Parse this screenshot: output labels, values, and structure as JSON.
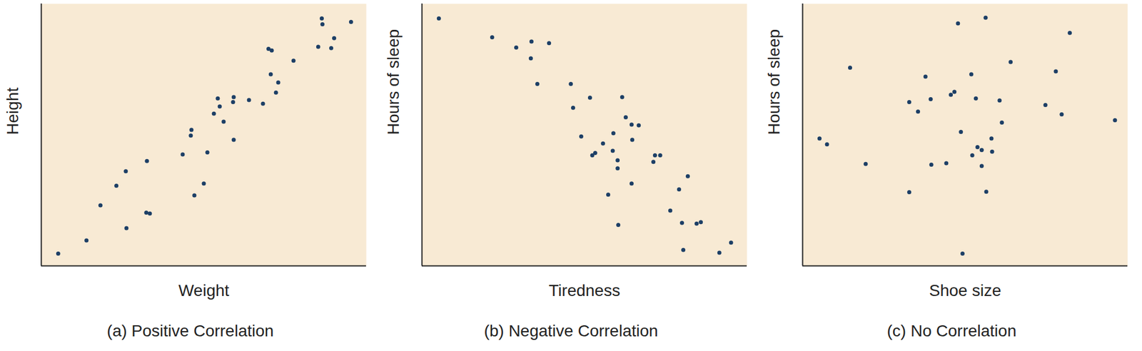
{
  "chart_data": [
    {
      "type": "scatter",
      "title": "(a) Positive Correlation",
      "x_label": "Weight",
      "y_label": "Height",
      "xlim": [
        0,
        100
      ],
      "ylim": [
        0,
        100
      ],
      "tick_labels": false,
      "color": "#1d3f66",
      "marker": "circle",
      "x": [
        5.2,
        13.9,
        18.2,
        23.1,
        26.0,
        26.2,
        32.5,
        32.3,
        33.4,
        43.5,
        46.0,
        46.2,
        47.1,
        50.0,
        51.1,
        53.1,
        54.3,
        54.9,
        56.1,
        59.2,
        59.0,
        59.2,
        63.9,
        68.2,
        69.9,
        70.9,
        70.6,
        72.2,
        72.9,
        77.6,
        85.2,
        86.3,
        86.5,
        89.2,
        90.1,
        95.3
      ],
      "y": [
        4.7,
        9.7,
        23.1,
        30.6,
        36.1,
        14.4,
        40.0,
        20.3,
        20.0,
        42.5,
        49.7,
        51.9,
        26.9,
        31.4,
        43.3,
        58.1,
        63.9,
        60.8,
        55.0,
        64.4,
        62.5,
        48.1,
        63.3,
        61.9,
        82.8,
        82.2,
        73.1,
        66.1,
        70.0,
        78.3,
        83.6,
        94.4,
        92.2,
        83.1,
        86.9,
        93.1
      ]
    },
    {
      "type": "scatter",
      "title": "(b) Negative Correlation",
      "x_label": "Tiredness",
      "y_label": "Hours of sleep",
      "xlim": [
        0,
        100
      ],
      "ylim": [
        0,
        100
      ],
      "tick_labels": false,
      "color": "#1d3f66",
      "marker": "circle",
      "x": [
        5.2,
        21.6,
        29.0,
        33.7,
        33.5,
        39.1,
        35.5,
        45.8,
        46.5,
        51.7,
        61.6,
        49.0,
        53.3,
        52.4,
        55.7,
        58.9,
        58.7,
        60.2,
        60.2,
        62.7,
        64.7,
        64.5,
        66.7,
        57.3,
        60.4,
        64.5,
        71.2,
        71.7,
        73.3,
        81.8,
        79.1,
        76.4,
        80.0,
        84.5,
        85.8,
        80.4,
        91.5,
        95.1
      ],
      "y": [
        94.4,
        87.2,
        83.3,
        85.6,
        79.2,
        85.0,
        69.4,
        69.4,
        60.3,
        64.2,
        64.4,
        49.4,
        43.1,
        42.2,
        46.7,
        50.6,
        43.9,
        40.3,
        37.2,
        56.7,
        48.1,
        53.9,
        53.6,
        27.2,
        15.6,
        31.4,
        39.7,
        42.2,
        42.2,
        34.2,
        29.2,
        21.1,
        16.4,
        16.1,
        16.7,
        6.1,
        5.0,
        8.9
      ]
    },
    {
      "type": "scatter",
      "title": "(c) No Correlation",
      "x_label": "Shoe size",
      "y_label": "Hours of sleep",
      "xlim": [
        0,
        100
      ],
      "ylim": [
        0,
        100
      ],
      "tick_labels": false,
      "color": "#1d3f66",
      "marker": "circle",
      "x": [
        5.2,
        7.5,
        14.6,
        19.4,
        32.8,
        32.8,
        35.5,
        37.8,
        39.4,
        39.6,
        44.2,
        45.6,
        46.7,
        47.8,
        48.7,
        49.2,
        51.9,
        52.2,
        53.3,
        53.8,
        55.1,
        55.1,
        56.3,
        56.5,
        58.1,
        58.3,
        60.6,
        61.3,
        64.0,
        74.7,
        77.9,
        79.7,
        82.2,
        96.1
      ],
      "y": [
        48.6,
        46.4,
        75.6,
        38.9,
        62.5,
        28.1,
        58.9,
        72.2,
        63.6,
        38.6,
        39.2,
        65.3,
        66.4,
        92.5,
        51.1,
        4.7,
        73.1,
        42.2,
        63.9,
        45.3,
        44.2,
        38.1,
        94.7,
        28.3,
        48.6,
        43.6,
        63.1,
        54.7,
        77.8,
        61.4,
        74.2,
        57.8,
        88.9,
        55.6
      ]
    }
  ]
}
